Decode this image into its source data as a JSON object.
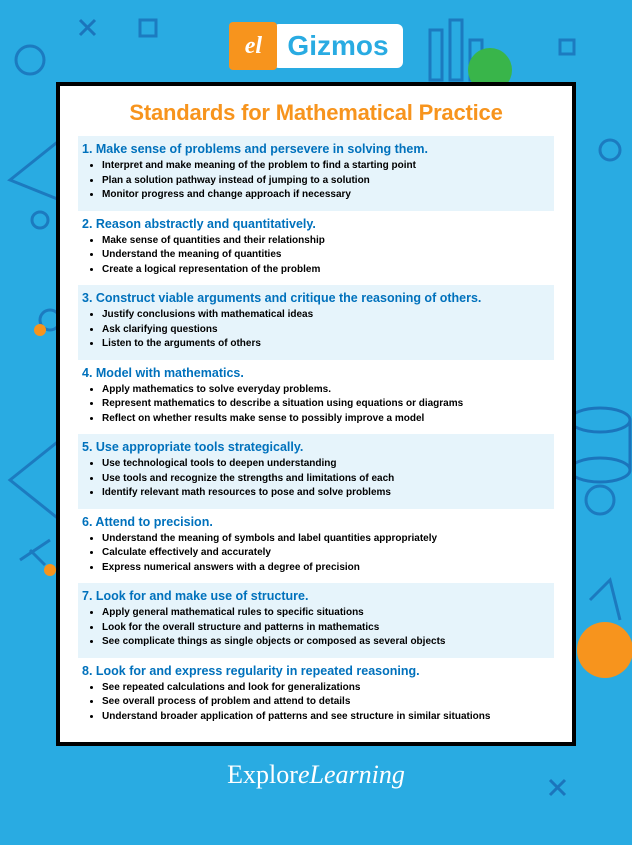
{
  "logo": {
    "badge": "el",
    "text": "Gizmos"
  },
  "title": "Standards for Mathematical Practice",
  "colors": {
    "page_bg": "#29abe2",
    "accent_orange": "#f7941d",
    "heading_blue": "#0071bc",
    "stripe_light": "#e6f4fb",
    "border": "#000000",
    "body_text": "#000000",
    "footer_text": "#ffffff"
  },
  "standards": [
    {
      "num": "1.",
      "title": "Make sense of problems and persevere in solving them.",
      "bullets": [
        "Interpret and make meaning of the problem to find a starting point",
        "Plan a solution pathway instead of jumping to a solution",
        "Monitor progress and change approach if necessary"
      ]
    },
    {
      "num": "2.",
      "title": "Reason abstractly and quantitatively.",
      "bullets": [
        "Make sense of quantities and their relationship",
        "Understand the meaning of quantities",
        "Create a logical representation of the problem"
      ]
    },
    {
      "num": "3.",
      "title": "Construct viable arguments and critique the reasoning of others.",
      "bullets": [
        "Justify conclusions with mathematical ideas",
        "Ask clarifying questions",
        "Listen to the arguments of others"
      ]
    },
    {
      "num": "4.",
      "title": "Model with mathematics.",
      "bullets": [
        "Apply mathematics to solve everyday problems.",
        "Represent mathematics to describe a situation using equations or diagrams",
        "Reflect on whether results make sense to possibly improve a model"
      ]
    },
    {
      "num": "5.",
      "title": "Use appropriate tools strategically.",
      "bullets": [
        "Use technological tools to deepen understanding",
        "Use tools and recognize the strengths and limitations of each",
        "Identify relevant math resources to pose and solve problems"
      ]
    },
    {
      "num": "6.",
      "title": "Attend to precision.",
      "bullets": [
        "Understand the meaning of symbols and label quantities appropriately",
        "Calculate effectively and accurately",
        "Express numerical answers with a degree of precision"
      ]
    },
    {
      "num": "7.",
      "title": "Look for and make use of structure.",
      "bullets": [
        "Apply general mathematical rules to specific situations",
        "Look for the overall structure and patterns in mathematics",
        "See complicate things as single objects or composed as several objects"
      ]
    },
    {
      "num": "8.",
      "title": "Look for and express regularity in repeated reasoning.",
      "bullets": [
        "See repeated calculations and look for generalizations",
        "See overall process of problem and attend to details",
        "Understand broader application of patterns and see structure in similar situations"
      ]
    }
  ],
  "footer": {
    "part1": "Explor",
    "part2": "eLearning"
  }
}
